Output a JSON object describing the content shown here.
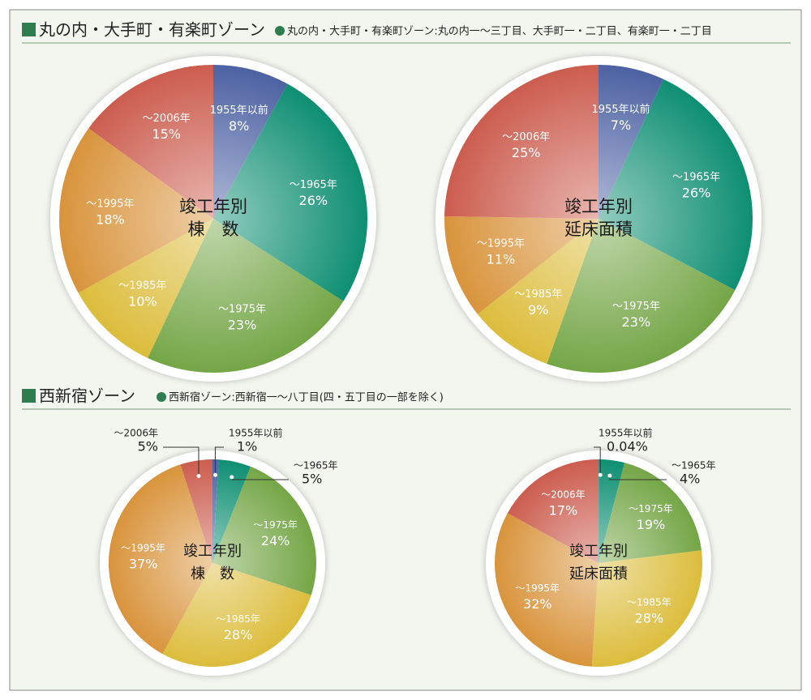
{
  "sections": [
    {
      "title": "丸の内・大手町・有楽町ゾーン",
      "note": "丸の内・大手町・有楽町ゾーン:丸の内一〜三丁目、大手町一・二丁目、有楽町一・二丁目"
    },
    {
      "title": "西新宿ゾーン",
      "note": "西新宿ゾーン:西新宿一〜八丁目(四・五丁目の一部を除く)"
    }
  ],
  "chart_data": [
    {
      "type": "pie",
      "center_label": [
        "竣工年別",
        "棟　数"
      ],
      "categories": [
        "1955年以前",
        "〜1965年",
        "〜1975年",
        "〜1985年",
        "〜1995年",
        "〜2006年"
      ],
      "values": [
        8,
        26,
        23,
        10,
        18,
        15
      ],
      "value_labels": [
        "8%",
        "26%",
        "23%",
        "10%",
        "18%",
        "15%"
      ],
      "colors": [
        "#4d62a3",
        "#0e8f72",
        "#74a646",
        "#dcbd3c",
        "#d9943c",
        "#cc5d4f"
      ]
    },
    {
      "type": "pie",
      "center_label": [
        "竣工年別",
        "延床面積"
      ],
      "categories": [
        "1955年以前",
        "〜1965年",
        "〜1975年",
        "〜1985年",
        "〜1995年",
        "〜2006年"
      ],
      "values": [
        7,
        26,
        23,
        9,
        11,
        25
      ],
      "value_labels": [
        "7%",
        "26%",
        "23%",
        "9%",
        "11%",
        "25%"
      ],
      "colors": [
        "#4d62a3",
        "#0e8f72",
        "#74a646",
        "#dcbd3c",
        "#d9943c",
        "#cc5d4f"
      ]
    },
    {
      "type": "pie",
      "center_label": [
        "竣工年別",
        "棟　数"
      ],
      "categories": [
        "1955年以前",
        "〜1965年",
        "〜1975年",
        "〜1985年",
        "〜1995年",
        "〜2006年"
      ],
      "values": [
        1,
        5,
        24,
        28,
        37,
        5
      ],
      "value_labels": [
        "1%",
        "5%",
        "24%",
        "28%",
        "37%",
        "5%"
      ],
      "colors": [
        "#4d62a3",
        "#0e8f72",
        "#74a646",
        "#dcbd3c",
        "#d9943c",
        "#cc5d4f"
      ]
    },
    {
      "type": "pie",
      "center_label": [
        "竣工年別",
        "延床面積"
      ],
      "categories": [
        "1955年以前",
        "〜1965年",
        "〜1975年",
        "〜1985年",
        "〜1995年",
        "〜2006年"
      ],
      "values": [
        0.04,
        4,
        19,
        28,
        32,
        17
      ],
      "value_labels": [
        "0.04%",
        "4%",
        "19%",
        "28%",
        "32%",
        "17%"
      ],
      "colors": [
        "#4d62a3",
        "#0e8f72",
        "#74a646",
        "#dcbd3c",
        "#d9943c",
        "#cc5d4f"
      ]
    }
  ]
}
